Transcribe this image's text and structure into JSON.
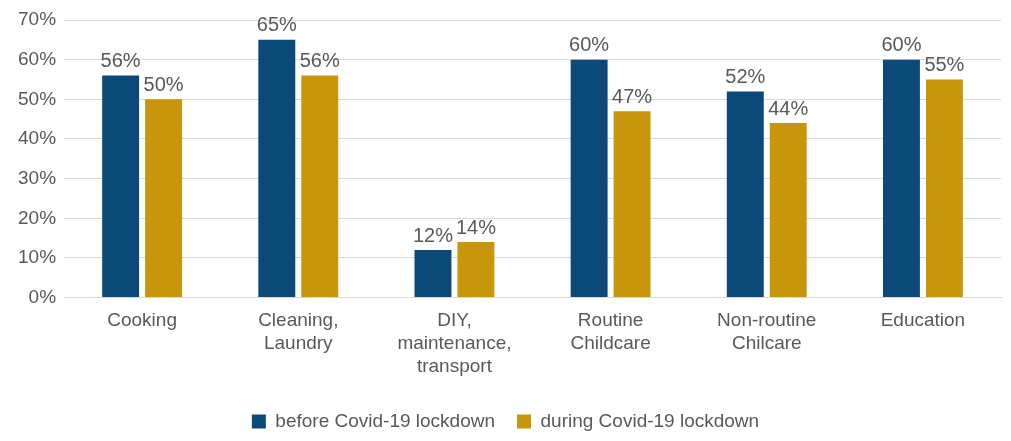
{
  "chart_data": {
    "type": "bar",
    "categories": [
      "Cooking",
      "Cleaning, Laundry",
      "DIY, maintenance, transport",
      "Routine Childcare",
      "Non-routine Chilcare",
      "Education"
    ],
    "series": [
      {
        "name": "before Covid-19 lockdown",
        "color": "#0b4a78",
        "values": [
          56,
          65,
          12,
          60,
          52,
          60
        ],
        "value_labels": [
          "56%",
          "65%",
          "12%",
          "60%",
          "52%",
          "60%"
        ]
      },
      {
        "name": "during Covid-19 lockdown",
        "color": "#c8960a",
        "values": [
          50,
          56,
          14,
          47,
          44,
          55
        ],
        "value_labels": [
          "50%",
          "56%",
          "14%",
          "47%",
          "44%",
          "55%"
        ]
      }
    ],
    "ylim": [
      0,
      70
    ],
    "yticks": [
      {
        "value": 0,
        "label": "0%"
      },
      {
        "value": 10,
        "label": "10%"
      },
      {
        "value": 20,
        "label": "20%"
      },
      {
        "value": 30,
        "label": "30%"
      },
      {
        "value": 40,
        "label": "40%"
      },
      {
        "value": 50,
        "label": "50%"
      },
      {
        "value": 60,
        "label": "60%"
      },
      {
        "value": 70,
        "label": "70%"
      }
    ],
    "grid": "y",
    "legend": "bottom"
  }
}
